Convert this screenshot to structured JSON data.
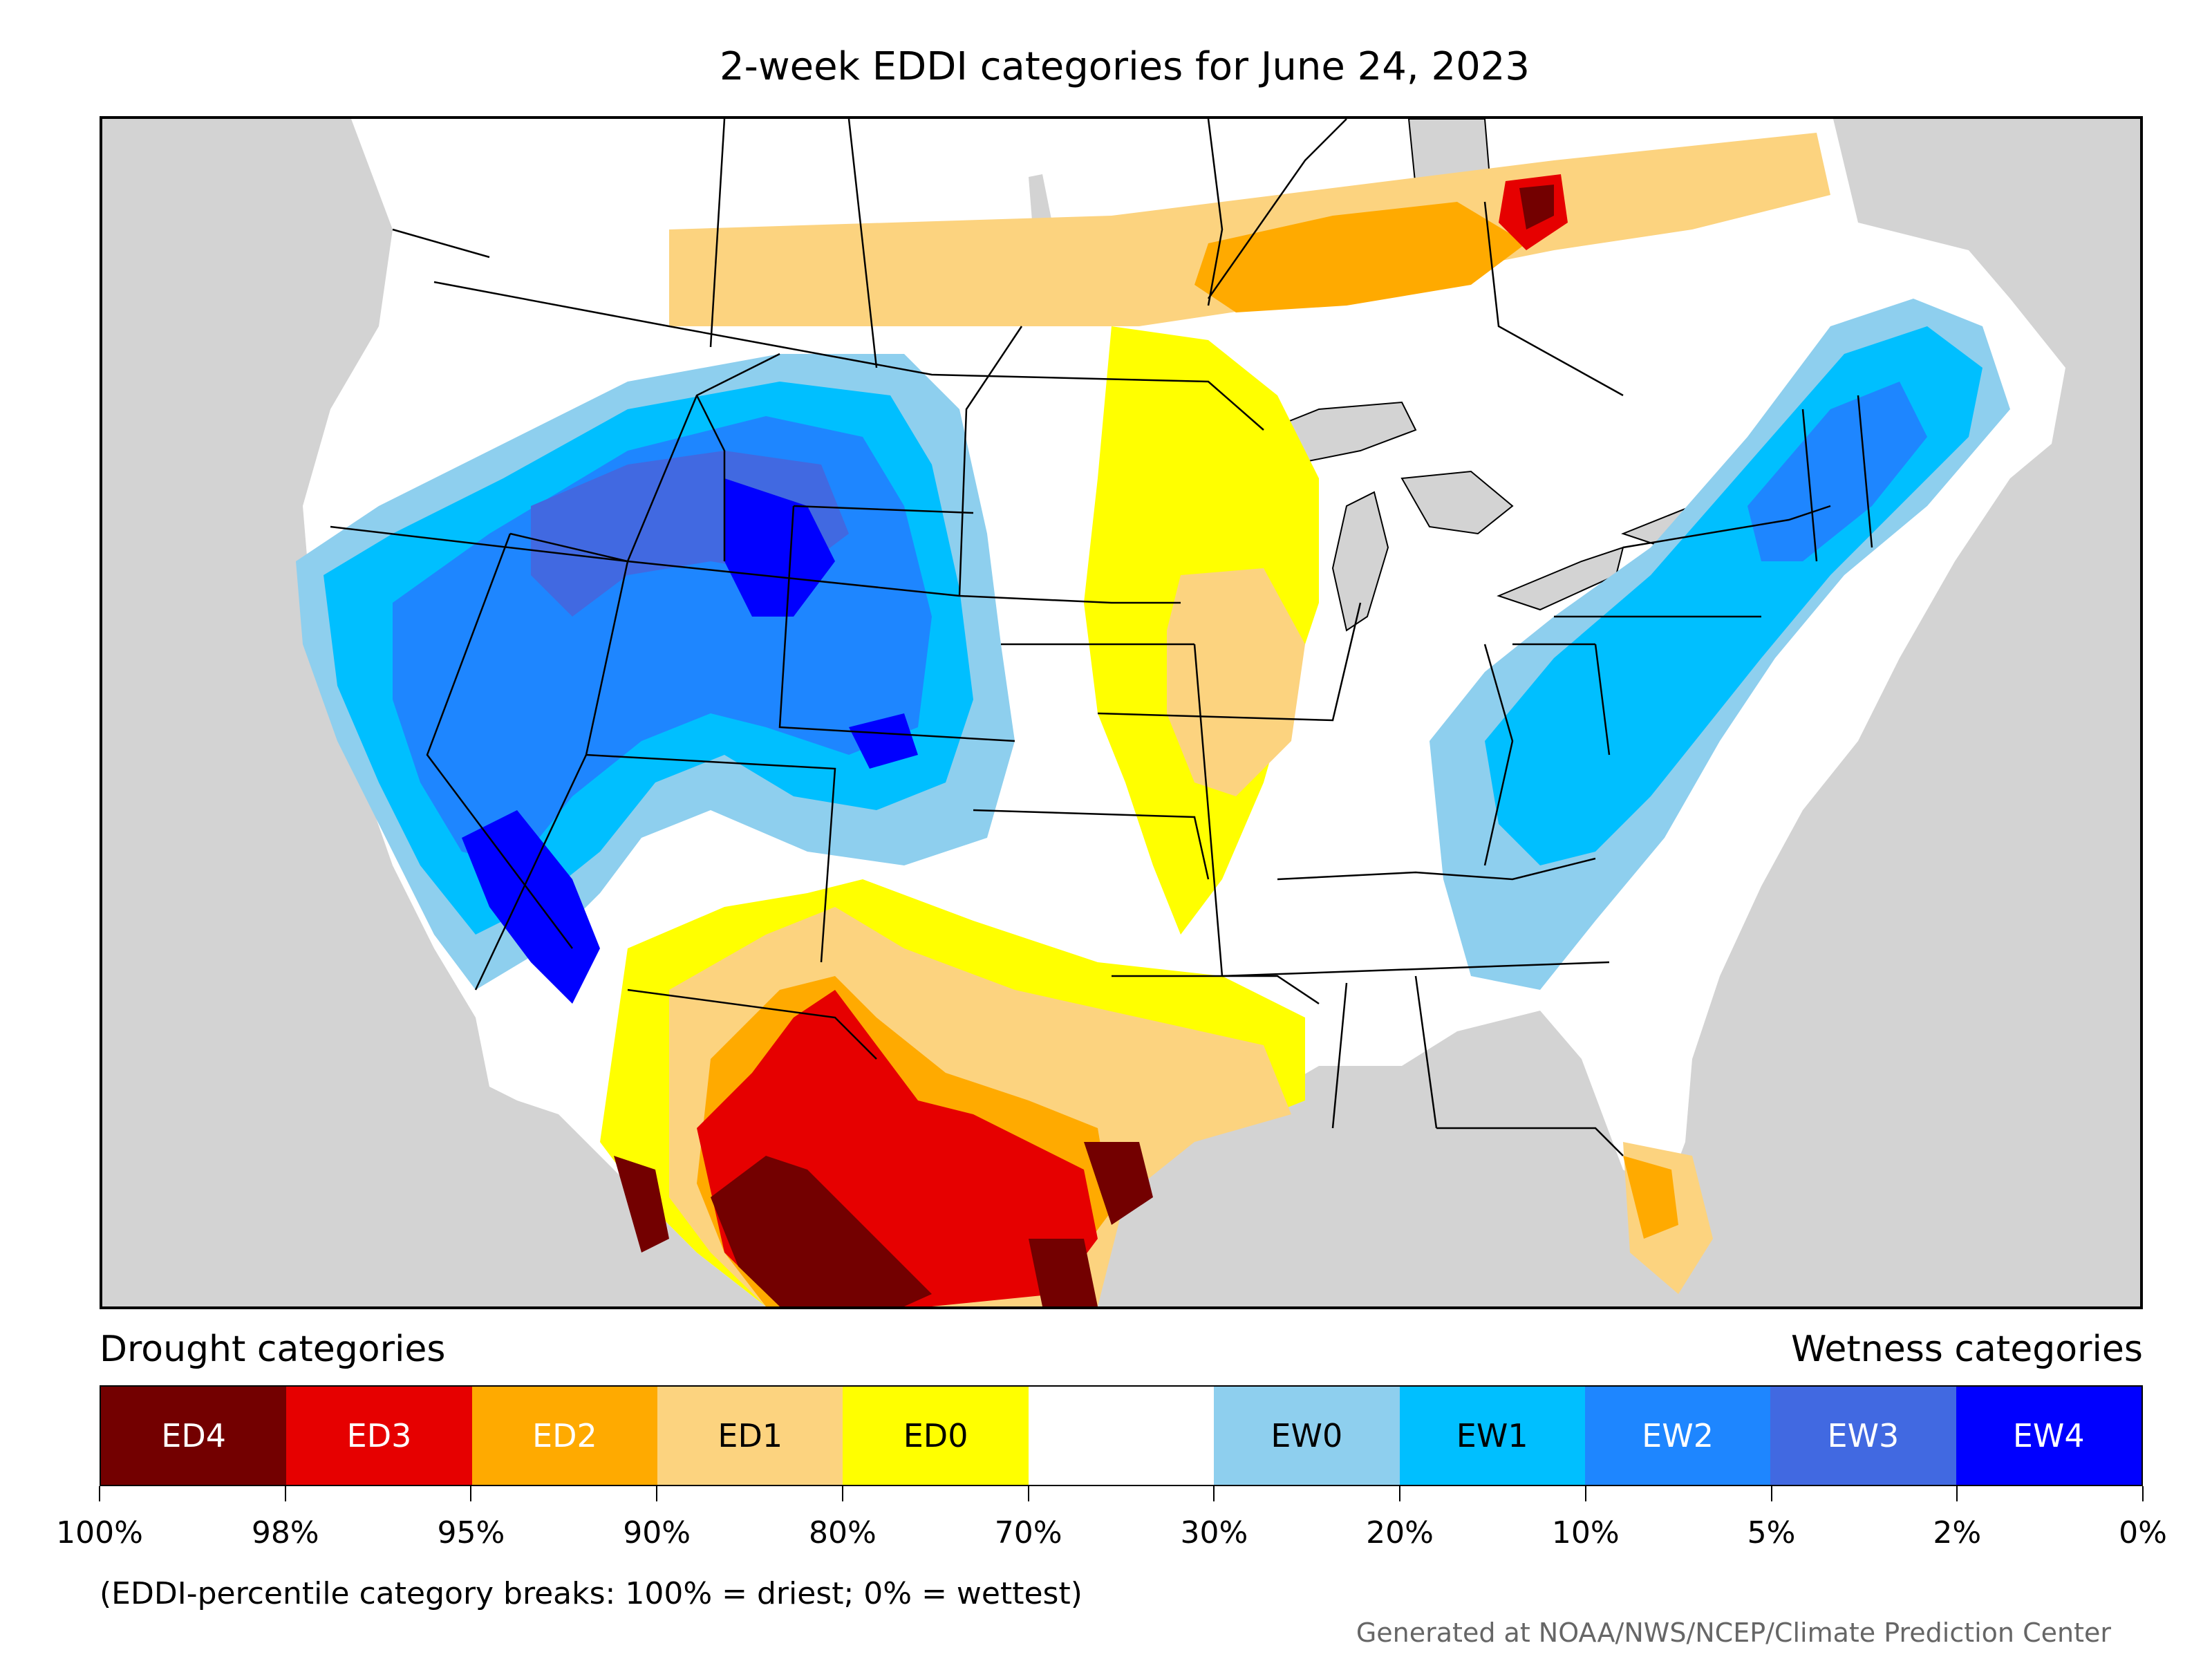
{
  "title": "2-week EDDI categories for June 24, 2023",
  "legend": {
    "drought_header": "Drought categories",
    "wetness_header": "Wetness categories",
    "categories": [
      {
        "label": "ED4",
        "color": "#730000",
        "text_color": "#ffffff"
      },
      {
        "label": "ED3",
        "color": "#e60000",
        "text_color": "#ffffff"
      },
      {
        "label": "ED2",
        "color": "#ffaa00",
        "text_color": "#ffffff"
      },
      {
        "label": "ED1",
        "color": "#fcd37f",
        "text_color": "#000000"
      },
      {
        "label": "ED0",
        "color": "#ffff00",
        "text_color": "#000000"
      },
      {
        "label": "",
        "color": "#ffffff",
        "text_color": "#000000"
      },
      {
        "label": "EW0",
        "color": "#8ecfee",
        "text_color": "#000000"
      },
      {
        "label": "EW1",
        "color": "#00bfff",
        "text_color": "#000000"
      },
      {
        "label": "EW2",
        "color": "#1e86ff",
        "text_color": "#ffffff"
      },
      {
        "label": "EW3",
        "color": "#4169e1",
        "text_color": "#ffffff"
      },
      {
        "label": "EW4",
        "color": "#0000ff",
        "text_color": "#ffffff"
      }
    ],
    "breaks": [
      "100%",
      "98%",
      "95%",
      "90%",
      "80%",
      "70%",
      "30%",
      "20%",
      "10%",
      "5%",
      "2%",
      "0%"
    ]
  },
  "note": "(EDDI-percentile category breaks: 100% = driest; 0% = wettest)",
  "credit": "Generated at NOAA/NWS/NCEP/Climate Prediction Center",
  "map": {
    "background_color": "#d3d3d3",
    "land_color": "#ffffff",
    "boundary_color": "#000000"
  }
}
